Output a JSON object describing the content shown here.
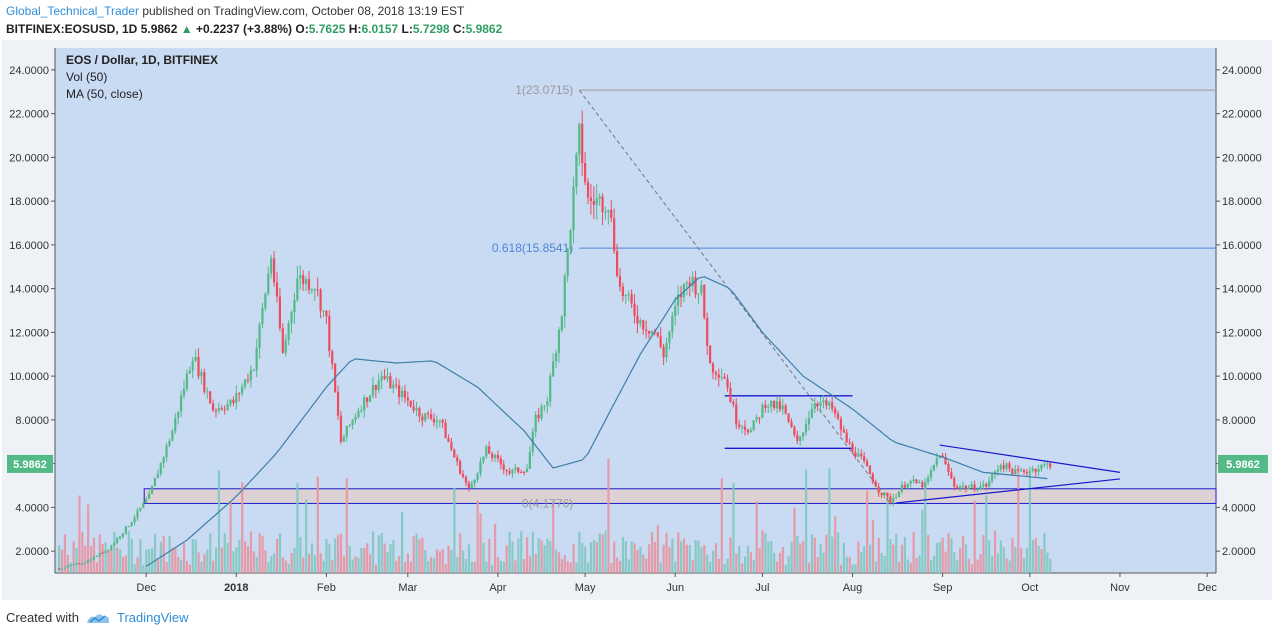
{
  "header": {
    "author": "Global_Technical_Trader",
    "published": "published on TradingView.com, October 08, 2018 13:19 EST",
    "symbol": "BITFINEX:EOSUSD, 1D",
    "last": "5.9862",
    "change": "+0.2237 (+3.88%)",
    "o_label": "O:",
    "o": "5.7625",
    "h_label": "H:",
    "h": "6.0157",
    "l_label": "L:",
    "l": "5.7298",
    "c_label": "C:",
    "c": "5.9862"
  },
  "legend": {
    "symbol": "EOS / Dollar, 1D, BITFINEX",
    "vol": "Vol (50)",
    "ma": "MA (50, close)"
  },
  "footer": {
    "created_with": "Created with",
    "brand": "TradingView"
  },
  "colors": {
    "background": "#c9daf3",
    "up": "#53b987",
    "down": "#eb4d5c",
    "vol_up": "#7fc8c0",
    "vol_down": "#e8939e",
    "ma": "#3d7fa8",
    "trendline": "#1a1acc",
    "fib_top": "#9a9a9a",
    "fib_618": "#4f86d6",
    "support_zone": "#dcd2d6",
    "price_badge": "#53b987"
  },
  "chart_data": {
    "type": "candlestick",
    "title": "EOS / Dollar, 1D, BITFINEX",
    "ylim": [
      1.0,
      25.0
    ],
    "y_ticks": [
      "2.0000",
      "4.0000",
      "6.0000",
      "8.0000",
      "10.0000",
      "12.0000",
      "14.0000",
      "16.0000",
      "18.0000",
      "20.0000",
      "22.0000",
      "24.0000"
    ],
    "x_labels": [
      "Dec",
      "2018",
      "Feb",
      "Mar",
      "Apr",
      "May",
      "Jun",
      "Jul",
      "Aug",
      "Sep",
      "Oct",
      "Nov",
      "Dec"
    ],
    "last_price_label": "5.9862",
    "fib_levels": [
      {
        "label": "1(23.0715)",
        "value": 23.0715
      },
      {
        "label": "0.618(15.8541)",
        "value": 15.8541
      },
      {
        "label": "0(4.1776)",
        "value": 4.1776
      }
    ],
    "support_zone": [
      4.18,
      4.85
    ],
    "range_box": {
      "top": 9.1,
      "bottom": 6.7,
      "from": "2018-06-18",
      "to": "2018-08-01"
    },
    "price_path": [
      [
        "2017-11-01",
        1.2
      ],
      [
        "2017-11-10",
        1.5
      ],
      [
        "2017-11-18",
        2.1
      ],
      [
        "2017-11-25",
        3.2
      ],
      [
        "2017-12-02",
        4.5
      ],
      [
        "2017-12-10",
        7.5
      ],
      [
        "2017-12-17",
        11.0
      ],
      [
        "2017-12-24",
        8.5
      ],
      [
        "2017-12-31",
        8.8
      ],
      [
        "2018-01-07",
        10.5
      ],
      [
        "2018-01-13",
        15.5
      ],
      [
        "2018-01-17",
        11.0
      ],
      [
        "2018-01-22",
        14.5
      ],
      [
        "2018-01-28",
        14.2
      ],
      [
        "2018-02-01",
        12.5
      ],
      [
        "2018-02-06",
        7.0
      ],
      [
        "2018-02-12",
        8.5
      ],
      [
        "2018-02-20",
        10.0
      ],
      [
        "2018-02-28",
        9.0
      ],
      [
        "2018-03-06",
        8.2
      ],
      [
        "2018-03-12",
        8.0
      ],
      [
        "2018-03-17",
        6.3
      ],
      [
        "2018-03-22",
        4.8
      ],
      [
        "2018-03-28",
        6.6
      ],
      [
        "2018-04-05",
        5.6
      ],
      [
        "2018-04-11",
        5.8
      ],
      [
        "2018-04-14",
        8.0
      ],
      [
        "2018-04-18",
        9.0
      ],
      [
        "2018-04-23",
        13.0
      ],
      [
        "2018-04-26",
        17.0
      ],
      [
        "2018-04-29",
        21.0
      ],
      [
        "2018-05-02",
        18.0
      ],
      [
        "2018-05-09",
        18.0
      ],
      [
        "2018-05-13",
        14.0
      ],
      [
        "2018-05-20",
        12.5
      ],
      [
        "2018-05-25",
        12.0
      ],
      [
        "2018-05-28",
        11.0
      ],
      [
        "2018-06-02",
        13.5
      ],
      [
        "2018-06-06",
        14.5
      ],
      [
        "2018-06-10",
        13.8
      ],
      [
        "2018-06-13",
        10.5
      ],
      [
        "2018-06-18",
        10.0
      ],
      [
        "2018-06-22",
        8.0
      ],
      [
        "2018-06-27",
        7.5
      ],
      [
        "2018-07-02",
        8.8
      ],
      [
        "2018-07-08",
        8.5
      ],
      [
        "2018-07-13",
        6.9
      ],
      [
        "2018-07-19",
        8.9
      ],
      [
        "2018-07-25",
        8.5
      ],
      [
        "2018-07-30",
        7.0
      ],
      [
        "2018-08-05",
        6.0
      ],
      [
        "2018-08-10",
        4.8
      ],
      [
        "2018-08-14",
        4.3
      ],
      [
        "2018-08-20",
        5.2
      ],
      [
        "2018-08-26",
        5.0
      ],
      [
        "2018-08-31",
        6.5
      ],
      [
        "2018-09-05",
        5.0
      ],
      [
        "2018-09-10",
        4.9
      ],
      [
        "2018-09-16",
        5.0
      ],
      [
        "2018-09-21",
        6.0
      ],
      [
        "2018-09-26",
        5.6
      ],
      [
        "2018-10-01",
        5.7
      ],
      [
        "2018-10-08",
        5.99
      ]
    ],
    "ma_path": [
      [
        "2017-12-01",
        1.3
      ],
      [
        "2017-12-15",
        2.5
      ],
      [
        "2018-01-01",
        4.5
      ],
      [
        "2018-01-15",
        6.5
      ],
      [
        "2018-02-01",
        9.5
      ],
      [
        "2018-02-10",
        10.8
      ],
      [
        "2018-02-25",
        10.6
      ],
      [
        "2018-03-10",
        10.7
      ],
      [
        "2018-03-25",
        9.5
      ],
      [
        "2018-04-10",
        7.5
      ],
      [
        "2018-04-20",
        5.8
      ],
      [
        "2018-05-01",
        6.2
      ],
      [
        "2018-05-10",
        8.5
      ],
      [
        "2018-05-20",
        11.0
      ],
      [
        "2018-06-01",
        13.5
      ],
      [
        "2018-06-10",
        14.6
      ],
      [
        "2018-06-20",
        14.0
      ],
      [
        "2018-07-01",
        12.0
      ],
      [
        "2018-07-15",
        10.0
      ],
      [
        "2018-08-01",
        8.5
      ],
      [
        "2018-08-15",
        7.0
      ],
      [
        "2018-09-01",
        6.3
      ],
      [
        "2018-09-15",
        5.6
      ],
      [
        "2018-10-01",
        5.4
      ],
      [
        "2018-10-08",
        5.3
      ]
    ],
    "volume_bars": 344,
    "triangle": {
      "upper": [
        [
          "2018-08-31",
          6.85
        ],
        [
          "2018-11-01",
          5.6
        ]
      ],
      "lower": [
        [
          "2018-08-16",
          4.2
        ],
        [
          "2018-11-01",
          5.3
        ]
      ]
    },
    "fib_line": [
      [
        "2018-04-29",
        23.07
      ],
      [
        "2018-08-14",
        4.18
      ]
    ]
  }
}
